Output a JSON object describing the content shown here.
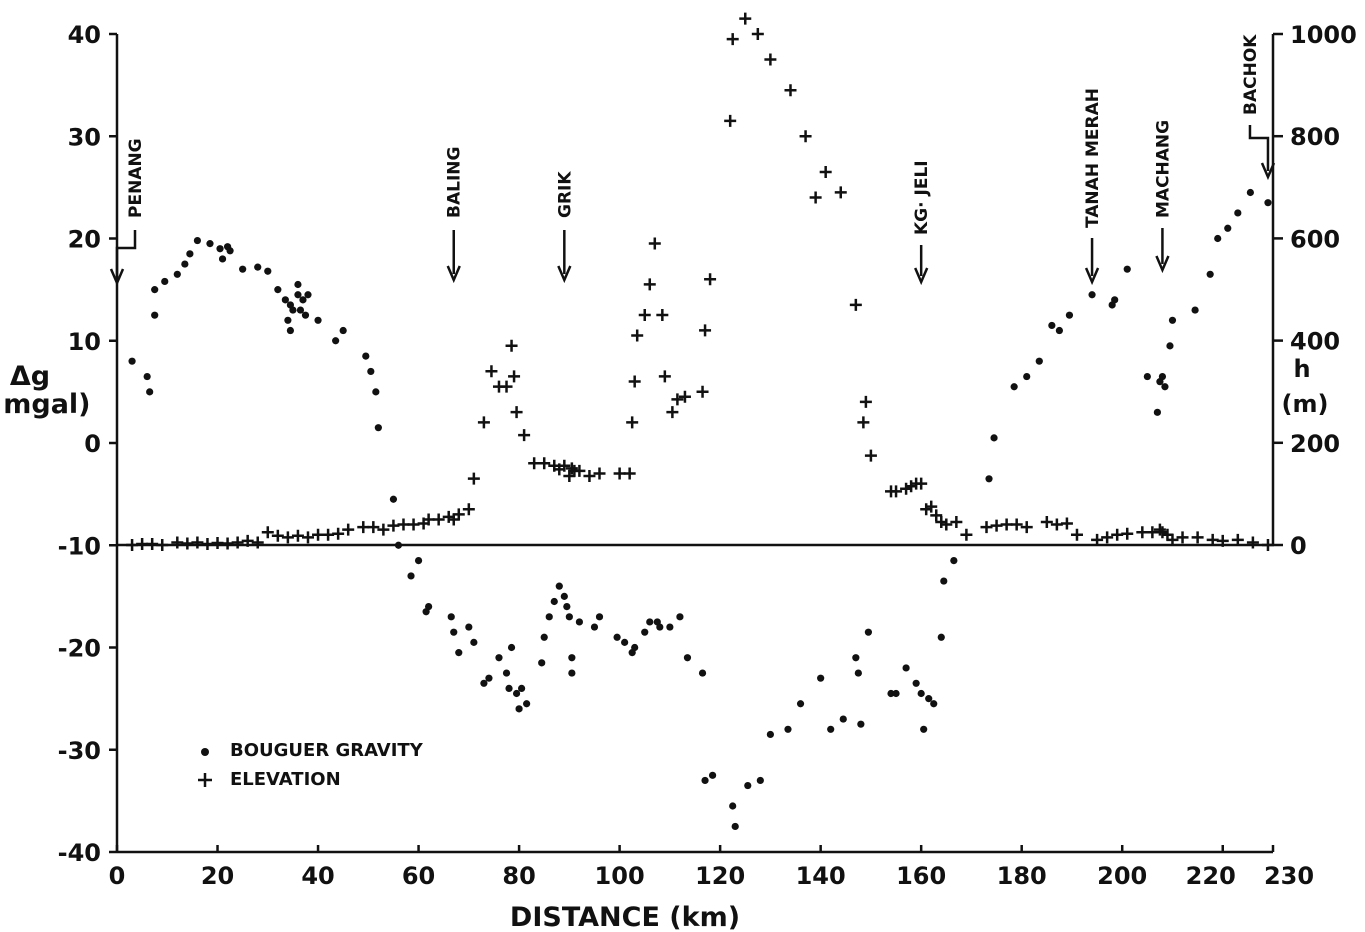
{
  "chart_data": {
    "type": "scatter",
    "xlabel": "DISTANCE (km)",
    "ylabel_left": [
      "Δg",
      "( mgal)"
    ],
    "ylabel_right": [
      "h",
      "(m)"
    ],
    "xlim": [
      0,
      230
    ],
    "ylim_left": [
      -40,
      40
    ],
    "ylim_right": [
      0,
      1000
    ],
    "x_ticks": [
      "0",
      "20",
      "40",
      "60",
      "80",
      "100",
      "120",
      "140",
      "160",
      "180",
      "200",
      "220",
      "230"
    ],
    "x_tick_values": [
      0,
      20,
      40,
      60,
      80,
      100,
      120,
      140,
      160,
      180,
      200,
      220,
      230
    ],
    "y_left_ticks": [
      "40",
      "30",
      "20",
      "10",
      "0",
      "-10",
      "-20",
      "-30",
      "-40"
    ],
    "y_left_tick_values": [
      40,
      30,
      20,
      10,
      0,
      -10,
      -20,
      -30,
      -40
    ],
    "y_right_ticks": [
      "1000",
      "800",
      "600",
      "400",
      "200",
      "0"
    ],
    "y_right_tick_values": [
      1000,
      800,
      600,
      400,
      200,
      0
    ],
    "grid": false,
    "legend": {
      "placement": "bottom-left",
      "entries": [
        {
          "marker": "dot",
          "label": "BOUGUER GRAVITY"
        },
        {
          "marker": "plus",
          "label": "ELEVATION"
        }
      ]
    },
    "locations": [
      {
        "name": "PENANG",
        "x": 0
      },
      {
        "name": "BALING",
        "x": 67
      },
      {
        "name": "GRIK",
        "x": 89
      },
      {
        "name": "KG· JELI",
        "x": 160
      },
      {
        "name": "TANAH MERAH",
        "x": 194
      },
      {
        "name": "MACHANG",
        "x": 208
      },
      {
        "name": "BACHOK",
        "x": 229
      }
    ],
    "series": [
      {
        "name": "BOUGUER GRAVITY",
        "axis": "left",
        "marker": "dot",
        "points": [
          [
            3,
            8
          ],
          [
            6,
            6.5
          ],
          [
            6.5,
            5
          ],
          [
            7.5,
            12.5
          ],
          [
            7.5,
            15
          ],
          [
            9.5,
            15.8
          ],
          [
            12,
            16.5
          ],
          [
            13.5,
            17.5
          ],
          [
            14.5,
            18.5
          ],
          [
            16,
            19.8
          ],
          [
            18.5,
            19.5
          ],
          [
            20.5,
            19
          ],
          [
            21,
            18
          ],
          [
            22,
            19.2
          ],
          [
            22.5,
            18.8
          ],
          [
            25,
            17
          ],
          [
            28,
            17.2
          ],
          [
            30,
            16.8
          ],
          [
            32,
            15
          ],
          [
            33.5,
            14
          ],
          [
            34,
            12
          ],
          [
            34.5,
            13.5
          ],
          [
            34.5,
            11
          ],
          [
            35,
            13
          ],
          [
            36,
            15.5
          ],
          [
            36,
            14.5
          ],
          [
            36.5,
            13
          ],
          [
            37,
            14
          ],
          [
            37.5,
            12.5
          ],
          [
            38,
            14.5
          ],
          [
            40,
            12
          ],
          [
            43.5,
            10
          ],
          [
            45,
            11
          ],
          [
            49.5,
            8.5
          ],
          [
            50.5,
            7
          ],
          [
            51.5,
            5
          ],
          [
            52,
            1.5
          ],
          [
            55,
            -5.5
          ],
          [
            56,
            -10
          ],
          [
            58.5,
            -13
          ],
          [
            60,
            -11.5
          ],
          [
            61.5,
            -16.5
          ],
          [
            62,
            -16
          ],
          [
            66.5,
            -17
          ],
          [
            67,
            -18.5
          ],
          [
            68,
            -20.5
          ],
          [
            70,
            -18
          ],
          [
            71,
            -19.5
          ],
          [
            73,
            -23.5
          ],
          [
            74,
            -23
          ],
          [
            76,
            -21
          ],
          [
            77.5,
            -22.5
          ],
          [
            78,
            -24
          ],
          [
            78.5,
            -20
          ],
          [
            79.5,
            -24.5
          ],
          [
            80,
            -26
          ],
          [
            80.5,
            -24
          ],
          [
            81.5,
            -25.5
          ],
          [
            84.5,
            -21.5
          ],
          [
            85,
            -19
          ],
          [
            86,
            -17
          ],
          [
            87,
            -15.5
          ],
          [
            88,
            -14
          ],
          [
            89,
            -15
          ],
          [
            89.5,
            -16
          ],
          [
            90,
            -17
          ],
          [
            90.5,
            -21
          ],
          [
            90.5,
            -22.5
          ],
          [
            92,
            -17.5
          ],
          [
            95,
            -18
          ],
          [
            96,
            -17
          ],
          [
            99.5,
            -19
          ],
          [
            101,
            -19.5
          ],
          [
            102.5,
            -20.5
          ],
          [
            103,
            -20
          ],
          [
            105,
            -18.5
          ],
          [
            106,
            -17.5
          ],
          [
            107.5,
            -17.5
          ],
          [
            108,
            -18
          ],
          [
            110,
            -18
          ],
          [
            112,
            -17
          ],
          [
            113.5,
            -21
          ],
          [
            116.5,
            -22.5
          ],
          [
            117,
            -33
          ],
          [
            118.5,
            -32.5
          ],
          [
            122.5,
            -35.5
          ],
          [
            123,
            -37.5
          ],
          [
            125.5,
            -33.5
          ],
          [
            128,
            -33
          ],
          [
            130,
            -28.5
          ],
          [
            133.5,
            -28
          ],
          [
            136,
            -25.5
          ],
          [
            140,
            -23
          ],
          [
            142,
            -28
          ],
          [
            144.5,
            -27
          ],
          [
            147,
            -21
          ],
          [
            147.5,
            -22.5
          ],
          [
            148,
            -27.5
          ],
          [
            149.5,
            -18.5
          ],
          [
            154,
            -24.5
          ],
          [
            155,
            -24.5
          ],
          [
            157,
            -22
          ],
          [
            159,
            -23.5
          ],
          [
            160,
            -24.5
          ],
          [
            160.5,
            -28
          ],
          [
            161.5,
            -25
          ],
          [
            162.5,
            -25.5
          ],
          [
            164,
            -19
          ],
          [
            164.5,
            -13.5
          ],
          [
            166.5,
            -11.5
          ],
          [
            173.5,
            -3.5
          ],
          [
            174.5,
            0.5
          ],
          [
            178.5,
            5.5
          ],
          [
            181,
            6.5
          ],
          [
            183.5,
            8
          ],
          [
            186,
            11.5
          ],
          [
            187.5,
            11
          ],
          [
            189.5,
            12.5
          ],
          [
            194,
            14.5
          ],
          [
            198,
            13.5
          ],
          [
            198.5,
            14
          ],
          [
            201,
            17
          ],
          [
            205,
            6.5
          ],
          [
            207,
            3
          ],
          [
            207.5,
            6
          ],
          [
            208,
            6.5
          ],
          [
            208.5,
            5.5
          ],
          [
            209.5,
            9.5
          ],
          [
            210,
            12
          ],
          [
            214.5,
            13
          ],
          [
            217.5,
            16.5
          ],
          [
            219,
            20
          ],
          [
            221,
            21
          ],
          [
            223,
            22.5
          ],
          [
            225.5,
            24.5
          ],
          [
            229,
            23.5
          ]
        ]
      },
      {
        "name": "ELEVATION",
        "axis": "right",
        "marker": "plus",
        "points": [
          [
            3,
            0
          ],
          [
            5,
            2
          ],
          [
            7,
            2
          ],
          [
            9,
            0
          ],
          [
            12,
            5
          ],
          [
            14,
            3
          ],
          [
            16,
            5
          ],
          [
            18,
            2
          ],
          [
            20,
            4
          ],
          [
            22,
            3
          ],
          [
            24,
            5
          ],
          [
            26,
            8
          ],
          [
            28,
            5
          ],
          [
            30,
            25
          ],
          [
            32,
            18
          ],
          [
            34,
            15
          ],
          [
            36,
            18
          ],
          [
            38,
            15
          ],
          [
            40,
            20
          ],
          [
            42,
            20
          ],
          [
            44,
            22
          ],
          [
            46,
            30
          ],
          [
            49,
            35
          ],
          [
            51,
            35
          ],
          [
            53,
            30
          ],
          [
            55,
            38
          ],
          [
            57,
            40
          ],
          [
            59,
            40
          ],
          [
            61,
            42
          ],
          [
            62,
            50
          ],
          [
            64,
            50
          ],
          [
            66,
            55
          ],
          [
            67,
            50
          ],
          [
            68,
            60
          ],
          [
            70,
            70
          ],
          [
            71,
            130
          ],
          [
            73,
            240
          ],
          [
            74.5,
            340
          ],
          [
            76,
            310
          ],
          [
            77.5,
            310
          ],
          [
            78.5,
            390
          ],
          [
            79,
            330
          ],
          [
            79.5,
            260
          ],
          [
            81,
            215
          ],
          [
            83,
            160
          ],
          [
            85,
            160
          ],
          [
            87,
            155
          ],
          [
            88,
            148
          ],
          [
            89,
            155
          ],
          [
            90,
            135
          ],
          [
            90.5,
            150
          ],
          [
            91,
            145
          ],
          [
            92,
            145
          ],
          [
            94,
            135
          ],
          [
            96,
            140
          ],
          [
            100,
            140
          ],
          [
            102,
            140
          ],
          [
            102.5,
            240
          ],
          [
            103,
            320
          ],
          [
            103.5,
            410
          ],
          [
            105,
            450
          ],
          [
            106,
            510
          ],
          [
            107,
            590
          ],
          [
            108.5,
            450
          ],
          [
            109,
            330
          ],
          [
            110.5,
            260
          ],
          [
            111.5,
            285
          ],
          [
            113,
            290
          ],
          [
            116.5,
            300
          ],
          [
            117,
            420
          ],
          [
            118,
            520
          ],
          [
            122,
            830
          ],
          [
            122.5,
            990
          ],
          [
            125,
            1030
          ],
          [
            127.5,
            1000
          ],
          [
            130,
            950
          ],
          [
            134,
            890
          ],
          [
            137,
            800
          ],
          [
            139,
            680
          ],
          [
            141,
            730
          ],
          [
            144,
            690
          ],
          [
            147,
            470
          ],
          [
            148.5,
            240
          ],
          [
            149,
            280
          ],
          [
            150,
            175
          ],
          [
            154,
            105
          ],
          [
            155,
            105
          ],
          [
            157,
            110
          ],
          [
            158,
            115
          ],
          [
            159,
            120
          ],
          [
            160,
            120
          ],
          [
            161,
            70
          ],
          [
            162,
            75
          ],
          [
            163,
            58
          ],
          [
            164,
            45
          ],
          [
            165,
            40
          ],
          [
            167,
            45
          ],
          [
            169,
            20
          ],
          [
            173,
            35
          ],
          [
            175,
            38
          ],
          [
            177,
            40
          ],
          [
            179,
            40
          ],
          [
            181,
            35
          ],
          [
            185,
            45
          ],
          [
            187,
            40
          ],
          [
            189,
            42
          ],
          [
            191,
            20
          ],
          [
            195,
            10
          ],
          [
            197,
            15
          ],
          [
            199,
            20
          ],
          [
            201,
            22
          ],
          [
            204,
            25
          ],
          [
            206,
            25
          ],
          [
            207.5,
            30
          ],
          [
            208,
            25
          ],
          [
            209,
            20
          ],
          [
            210,
            10
          ],
          [
            212,
            15
          ],
          [
            215,
            15
          ],
          [
            218,
            10
          ],
          [
            220,
            8
          ],
          [
            223,
            10
          ],
          [
            226,
            5
          ],
          [
            229,
            0
          ]
        ]
      }
    ]
  }
}
